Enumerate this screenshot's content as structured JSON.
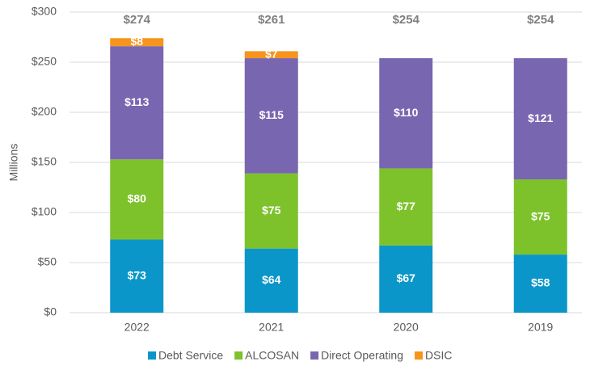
{
  "chart_data": {
    "type": "stacked_bar",
    "categories": [
      "2022",
      "2021",
      "2020",
      "2019"
    ],
    "series": [
      {
        "name": "Debt Service",
        "color": "#0b96c9",
        "values": [
          73,
          64,
          67,
          58
        ],
        "value_labels": [
          "$73",
          "$64",
          "$67",
          "$58"
        ]
      },
      {
        "name": "ALCOSAN",
        "color": "#7dc22b",
        "values": [
          80,
          75,
          77,
          75
        ],
        "value_labels": [
          "$80",
          "$75",
          "$77",
          "$75"
        ]
      },
      {
        "name": "Direct Operating",
        "color": "#7966b0",
        "values": [
          113,
          115,
          110,
          121
        ],
        "value_labels": [
          "$113",
          "$115",
          "$110",
          "$121"
        ]
      },
      {
        "name": "DSIC",
        "color": "#f7941d",
        "values": [
          8,
          7,
          null,
          null
        ],
        "value_labels": [
          "$8",
          "$7",
          null,
          null
        ]
      }
    ],
    "totals": [
      274,
      261,
      254,
      254
    ],
    "totals_labels": [
      "$274",
      "$261",
      "$254",
      "$254"
    ],
    "ylabel": "Millions",
    "ylim": [
      0,
      300
    ],
    "yticks": [
      {
        "value": 0,
        "label": "$0"
      },
      {
        "value": 50,
        "label": "$50"
      },
      {
        "value": 100,
        "label": "$100"
      },
      {
        "value": 150,
        "label": "$150"
      },
      {
        "value": 200,
        "label": "$200"
      },
      {
        "value": 250,
        "label": "$250"
      },
      {
        "value": 300,
        "label": "$300"
      }
    ],
    "grid": true,
    "legend": "bottom"
  }
}
